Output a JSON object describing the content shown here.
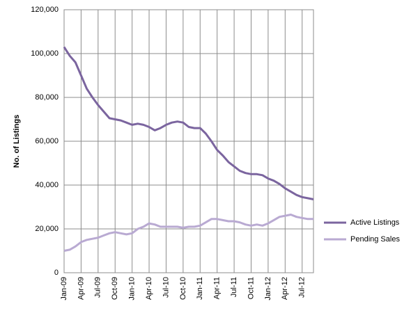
{
  "chart_data": {
    "type": "line",
    "y_label": "No. of Listings",
    "categories": [
      "Jan-09",
      null,
      null,
      "Apr-09",
      null,
      null,
      "Jul-09",
      null,
      null,
      "Oct-09",
      null,
      null,
      "Jan-10",
      null,
      null,
      "Apr-10",
      null,
      null,
      "Jul-10",
      null,
      null,
      "Oct-10",
      null,
      null,
      "Jan-11",
      null,
      null,
      "Apr-11",
      null,
      null,
      "Jul-11",
      null,
      null,
      "Oct-11",
      null,
      null,
      "Jan-12",
      null,
      null,
      "Apr-12",
      null,
      null,
      "Jul-12",
      null,
      null
    ],
    "series": [
      {
        "name": "Active Listings",
        "color": "#7b659f",
        "values": [
          103000,
          99000,
          96000,
          90000,
          84000,
          80000,
          76500,
          73500,
          70500,
          70000,
          69500,
          68500,
          67500,
          68000,
          67500,
          66500,
          65000,
          66000,
          67500,
          68500,
          69000,
          68500,
          66500,
          66000,
          66000,
          63500,
          60000,
          56000,
          53500,
          50500,
          48500,
          46500,
          45500,
          45000,
          45000,
          44500,
          43000,
          42000,
          40500,
          38500,
          37000,
          35500,
          34500,
          34000,
          33500
        ]
      },
      {
        "name": "Pending Sales",
        "color": "#b9aad2",
        "values": [
          10000,
          10500,
          12000,
          14000,
          15000,
          15500,
          16000,
          17000,
          18000,
          18500,
          18000,
          17500,
          18000,
          20000,
          21000,
          22500,
          22000,
          21000,
          21000,
          21000,
          21000,
          20500,
          21000,
          21000,
          21500,
          23000,
          24500,
          24500,
          24000,
          23500,
          23500,
          23000,
          22000,
          21500,
          22000,
          21500,
          22500,
          24000,
          25500,
          26000,
          26500,
          25500,
          25000,
          24500,
          24500
        ]
      }
    ],
    "ylim": [
      0,
      120000
    ],
    "yticks": [
      0,
      {
        "value": 20000,
        "label": "20,000"
      },
      {
        "value": 40000,
        "label": "40,000"
      },
      {
        "value": 60000,
        "label": "60,000"
      },
      {
        "value": 80000,
        "label": "80,000"
      },
      {
        "value": 100000,
        "label": "100,000"
      },
      {
        "value": 120000,
        "label": "120,000"
      }
    ],
    "grid": true,
    "legend": "right"
  }
}
